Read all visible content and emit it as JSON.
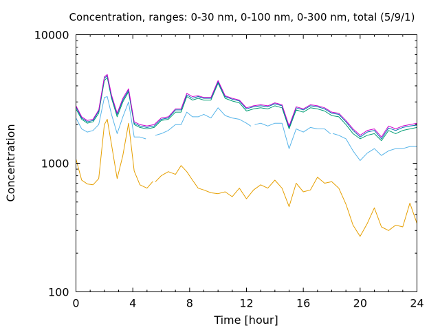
{
  "chart_data": {
    "type": "line",
    "title": "Concentration, ranges: 0-30 nm, 0-100 nm, 0-300 nm, total (5/9/1)",
    "xlabel": "Time [hour]",
    "ylabel": "Concentration",
    "xlim": [
      0,
      24
    ],
    "ylim": [
      100,
      10000
    ],
    "yscale": "log",
    "grid": false,
    "legend": "none",
    "xticks": [
      0,
      4,
      8,
      12,
      16,
      20,
      24
    ],
    "xtick_labels": [
      "0",
      "4",
      "8",
      "12",
      "16",
      "20",
      "24"
    ],
    "yticks": [
      100,
      1000,
      10000
    ],
    "ytick_labels": [
      "100",
      "1000",
      "10000"
    ],
    "series": [
      {
        "color": "#e69f00",
        "gaps_after": [
          5.4
        ],
        "x": [
          0,
          0.4,
          0.8,
          1.2,
          1.6,
          2.0,
          2.2,
          2.5,
          2.9,
          3.3,
          3.7,
          4.1,
          4.5,
          5.0,
          5.4,
          5.6,
          6.0,
          6.5,
          7.0,
          7.4,
          7.8,
          8.2,
          8.6,
          9.0,
          9.5,
          10.0,
          10.5,
          11.0,
          11.5,
          12.0,
          12.5,
          13.0,
          13.5,
          14.0,
          14.5,
          15.0,
          15.5,
          16.0,
          16.5,
          17.0,
          17.5,
          18.0,
          18.5,
          19.0,
          19.5,
          20.0,
          20.5,
          21.0,
          21.5,
          22.0,
          22.5,
          23.0,
          23.5,
          24.0
        ],
        "y": [
          1080,
          740,
          690,
          680,
          760,
          2000,
          2200,
          1400,
          760,
          1150,
          2050,
          870,
          680,
          640,
          720,
          720,
          800,
          860,
          820,
          960,
          860,
          740,
          640,
          620,
          590,
          580,
          600,
          550,
          640,
          530,
          620,
          680,
          640,
          740,
          640,
          460,
          700,
          600,
          620,
          780,
          700,
          720,
          640,
          480,
          330,
          270,
          340,
          450,
          320,
          300,
          330,
          320,
          490,
          340
        ]
      },
      {
        "color": "#56b4e9",
        "gaps_after": [
          4.9,
          12.3,
          17.9
        ],
        "x": [
          0,
          0.4,
          0.8,
          1.2,
          1.6,
          2.0,
          2.2,
          2.5,
          2.9,
          3.3,
          3.7,
          4.1,
          4.5,
          4.9,
          5.6,
          6.0,
          6.5,
          7.0,
          7.4,
          7.8,
          8.2,
          8.6,
          9.0,
          9.5,
          10.0,
          10.5,
          11.0,
          11.5,
          12.0,
          12.3,
          12.6,
          13.0,
          13.5,
          14.0,
          14.5,
          15.0,
          15.5,
          16.0,
          16.5,
          17.0,
          17.5,
          17.9,
          18.1,
          18.5,
          19.0,
          19.5,
          20.0,
          20.5,
          21.0,
          21.5,
          22.0,
          22.5,
          23.0,
          23.5,
          24.0
        ],
        "y": [
          2250,
          1850,
          1750,
          1800,
          2000,
          3250,
          3300,
          2400,
          1700,
          2300,
          3000,
          1600,
          1600,
          1550,
          1650,
          1700,
          1800,
          2000,
          2000,
          2500,
          2300,
          2300,
          2400,
          2250,
          2700,
          2350,
          2250,
          2200,
          2050,
          1950,
          2000,
          2050,
          1950,
          2050,
          2050,
          1300,
          1850,
          1750,
          1900,
          1850,
          1850,
          1700,
          1700,
          1650,
          1550,
          1250,
          1050,
          1200,
          1300,
          1150,
          1250,
          1300,
          1300,
          1350,
          1350
        ]
      },
      {
        "color": "#009e73",
        "gaps_after": [],
        "x": [
          0,
          0.4,
          0.8,
          1.2,
          1.6,
          2.0,
          2.2,
          2.5,
          2.9,
          3.3,
          3.7,
          4.1,
          4.5,
          5.0,
          5.5,
          6.0,
          6.5,
          7.0,
          7.4,
          7.8,
          8.2,
          8.6,
          9.0,
          9.5,
          10.0,
          10.5,
          11.0,
          11.5,
          12.0,
          12.5,
          13.0,
          13.5,
          14.0,
          14.5,
          15.0,
          15.5,
          16.0,
          16.5,
          17.0,
          17.5,
          18.0,
          18.5,
          19.0,
          19.5,
          20.0,
          20.5,
          21.0,
          21.5,
          22.0,
          22.5,
          23.0,
          23.5,
          24.0
        ],
        "y": [
          2650,
          2200,
          2050,
          2100,
          2450,
          4400,
          4650,
          3200,
          2300,
          3000,
          3600,
          2000,
          1900,
          1850,
          1900,
          2150,
          2200,
          2500,
          2500,
          3300,
          3100,
          3200,
          3100,
          3100,
          4200,
          3200,
          3050,
          2950,
          2550,
          2650,
          2700,
          2650,
          2800,
          2700,
          1850,
          2600,
          2500,
          2700,
          2650,
          2550,
          2350,
          2300,
          2000,
          1700,
          1550,
          1650,
          1700,
          1500,
          1800,
          1700,
          1800,
          1850,
          1900
        ]
      },
      {
        "color": "#0072b2",
        "gaps_after": [],
        "x": [
          0,
          0.4,
          0.8,
          1.2,
          1.6,
          2.0,
          2.2,
          2.5,
          2.9,
          3.3,
          3.7,
          4.1,
          4.5,
          5.0,
          5.5,
          6.0,
          6.5,
          7.0,
          7.4,
          7.8,
          8.2,
          8.6,
          9.0,
          9.5,
          10.0,
          10.5,
          11.0,
          11.5,
          12.0,
          12.5,
          13.0,
          13.5,
          14.0,
          14.5,
          15.0,
          15.5,
          16.0,
          16.5,
          17.0,
          17.5,
          18.0,
          18.5,
          19.0,
          19.5,
          20.0,
          20.5,
          21.0,
          21.5,
          22.0,
          22.5,
          23.0,
          23.5,
          24.0
        ],
        "y": [
          2750,
          2250,
          2100,
          2150,
          2550,
          4600,
          4800,
          3300,
          2400,
          3100,
          3700,
          2050,
          1950,
          1900,
          1950,
          2200,
          2250,
          2600,
          2600,
          3400,
          3200,
          3300,
          3200,
          3200,
          4300,
          3300,
          3150,
          3050,
          2650,
          2750,
          2800,
          2750,
          2900,
          2800,
          1900,
          2700,
          2600,
          2800,
          2750,
          2650,
          2450,
          2400,
          2100,
          1800,
          1600,
          1750,
          1800,
          1550,
          1880,
          1800,
          1900,
          1950,
          1980
        ]
      },
      {
        "color": "#cc00cc",
        "gaps_after": [],
        "x": [
          0,
          0.4,
          0.8,
          1.2,
          1.6,
          2.0,
          2.2,
          2.5,
          2.9,
          3.3,
          3.7,
          4.1,
          4.5,
          5.0,
          5.5,
          6.0,
          6.5,
          7.0,
          7.4,
          7.8,
          8.2,
          8.6,
          9.0,
          9.5,
          10.0,
          10.5,
          11.0,
          11.5,
          12.0,
          12.5,
          13.0,
          13.5,
          14.0,
          14.5,
          15.0,
          15.5,
          16.0,
          16.5,
          17.0,
          17.5,
          18.0,
          18.5,
          19.0,
          19.5,
          20.0,
          20.5,
          21.0,
          21.5,
          22.0,
          22.5,
          23.0,
          23.5,
          24.0
        ],
        "y": [
          2800,
          2300,
          2150,
          2200,
          2600,
          4700,
          4900,
          3400,
          2450,
          3200,
          3800,
          2100,
          2000,
          1950,
          2000,
          2250,
          2300,
          2650,
          2650,
          3500,
          3300,
          3350,
          3250,
          3250,
          4400,
          3350,
          3200,
          3100,
          2700,
          2800,
          2850,
          2800,
          2950,
          2850,
          1950,
          2750,
          2650,
          2850,
          2800,
          2700,
          2500,
          2450,
          2150,
          1850,
          1650,
          1800,
          1850,
          1600,
          1950,
          1850,
          1950,
          2000,
          2050
        ]
      }
    ]
  }
}
